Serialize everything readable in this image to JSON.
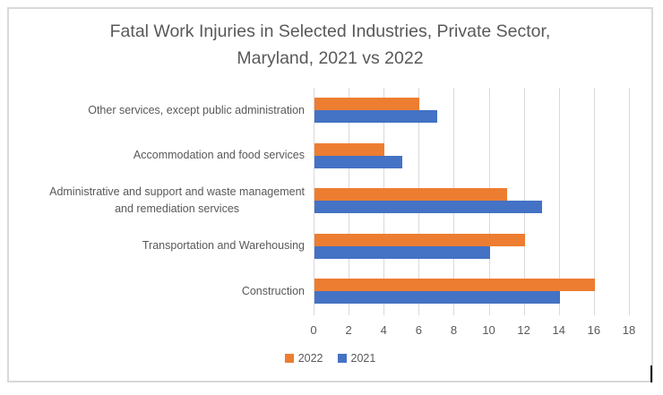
{
  "chart_data": {
    "type": "bar",
    "orientation": "horizontal",
    "title": "Fatal Work Injuries in Selected Industries, Private Sector, Maryland, 2021 vs 2022",
    "title_display": "Fatal Work Injuries in Selected Industries, Private Sector,\nMaryland, 2021 vs 2022",
    "categories": [
      "Other services, except public administration",
      "Accommodation and food services",
      "Administrative and support and waste management\nand remediation services",
      "Transportation and Warehousing",
      "Construction"
    ],
    "series": [
      {
        "name": "2022",
        "color": "#ED7D31",
        "values": [
          6,
          4,
          11,
          12,
          16
        ]
      },
      {
        "name": "2021",
        "color": "#4472C4",
        "values": [
          7,
          5,
          13,
          10,
          14
        ]
      }
    ],
    "x_axis": {
      "min": 0,
      "max": 18,
      "step": 2,
      "ticks": [
        0,
        2,
        4,
        6,
        8,
        10,
        12,
        14,
        16,
        18
      ]
    },
    "legend_position": "bottom",
    "grid": true,
    "colors": {
      "grid": "#D9D9D9",
      "frame_border": "#D9D9D9",
      "text": "#595959",
      "background": "#FFFFFF"
    }
  }
}
